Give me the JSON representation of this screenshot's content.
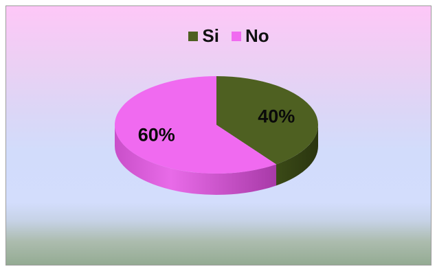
{
  "chart_data": {
    "type": "pie",
    "title": "",
    "categories": [
      "Si",
      "No"
    ],
    "values": [
      40,
      60
    ],
    "data_labels": [
      "40%",
      "60%"
    ],
    "colors": [
      "#4e6021",
      "#f06af0"
    ],
    "legend_placement": "top",
    "style": "3d"
  },
  "legend": {
    "items": [
      {
        "label": "Si",
        "color": "#4e6021"
      },
      {
        "label": "No",
        "color": "#f06af0"
      }
    ]
  }
}
